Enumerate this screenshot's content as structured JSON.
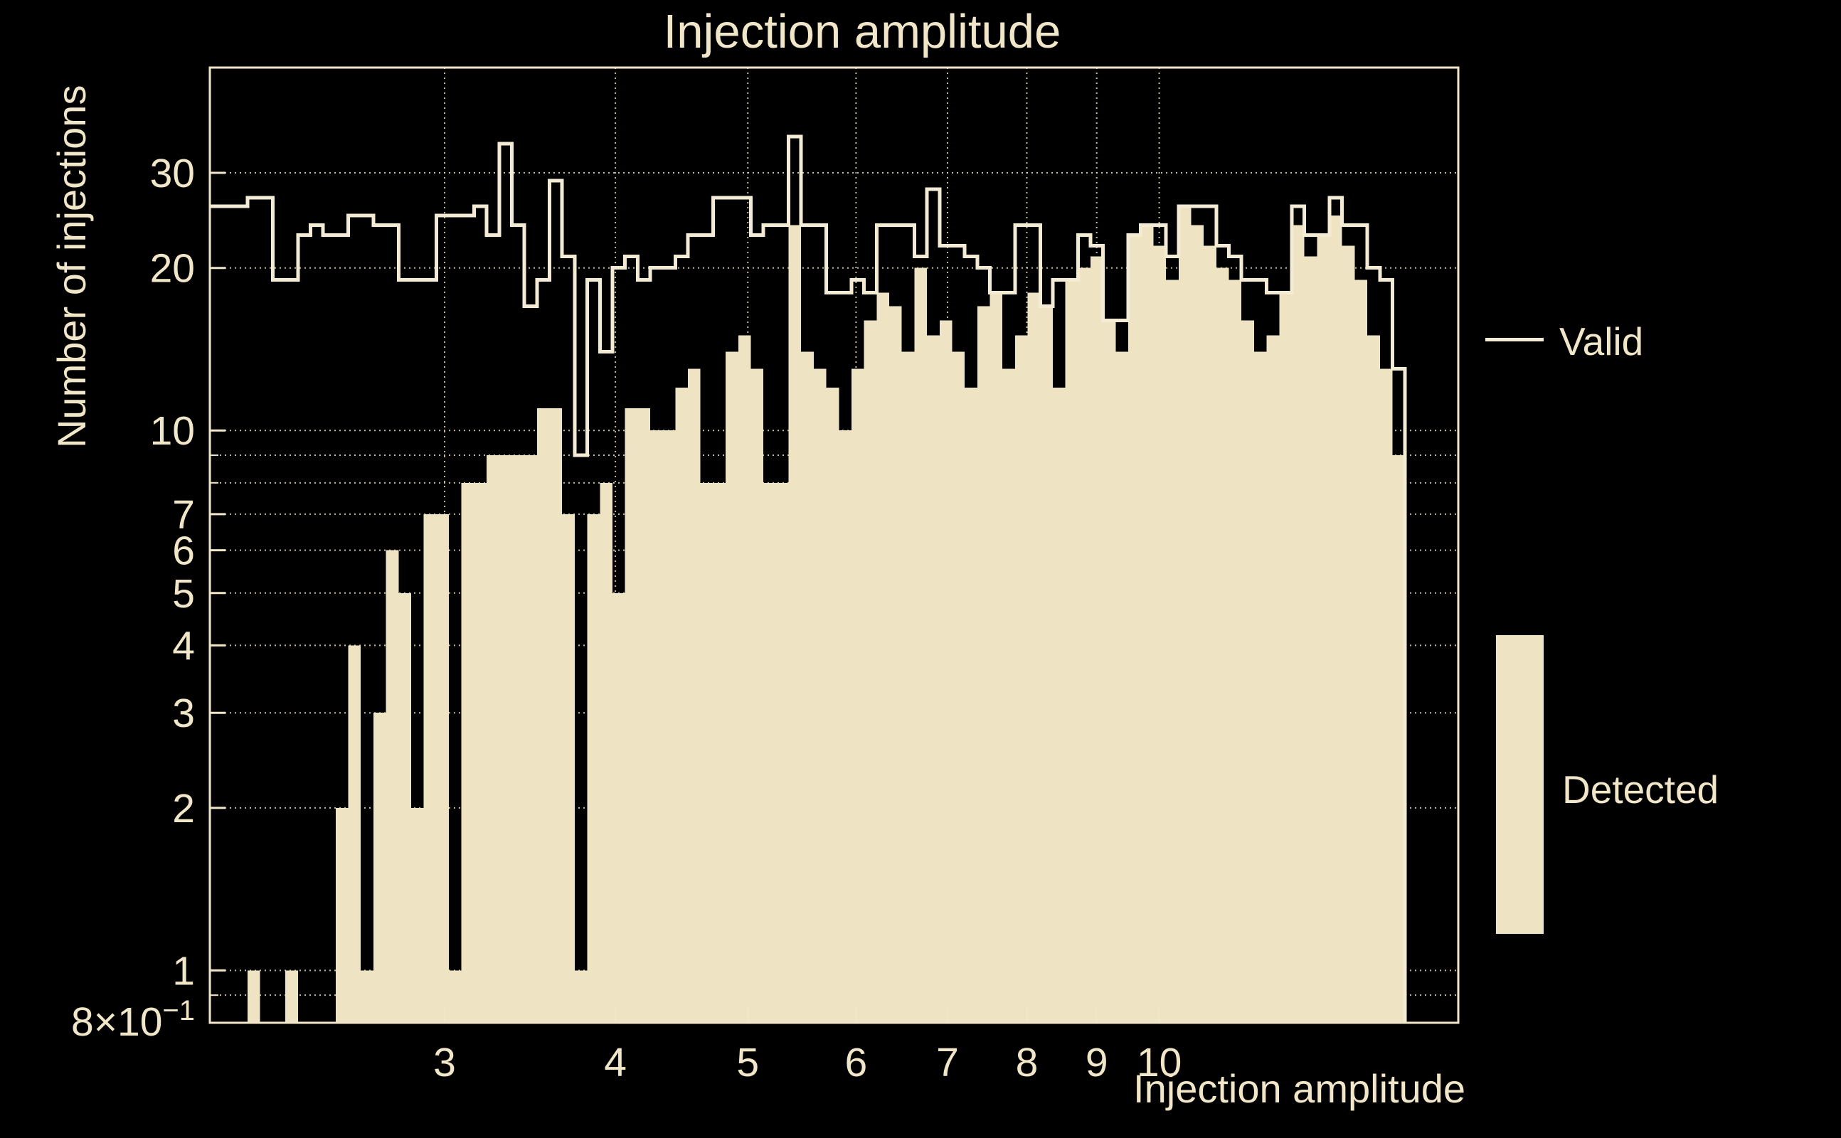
{
  "title": "Injection amplitude",
  "colors": {
    "background": "#000000",
    "text": "#f1e6c8",
    "fill": "#eee3c3",
    "line": "#f4ebd5",
    "grid": "#e8dcba",
    "frame": "#f1e6c8"
  },
  "legend": {
    "valid_label": "Valid",
    "detected_label": "Detected"
  },
  "axes": {
    "x": {
      "label": "Injection amplitude",
      "scale": "log",
      "min": 2.02,
      "max": 16.55,
      "tick_labels": [
        "3",
        "4",
        "5",
        "6",
        "7",
        "8",
        "9",
        "10"
      ],
      "tick_values": [
        3,
        4,
        5,
        6,
        7,
        8,
        9,
        10
      ],
      "grid_values": [
        3,
        4,
        5,
        6,
        7,
        8,
        9,
        10
      ]
    },
    "y": {
      "label": "Number of injections",
      "scale": "log",
      "min": 0.8,
      "max": 47,
      "tick_labels": [
        "30",
        "20",
        "10",
        "7",
        "6",
        "5",
        "4",
        "3",
        "2",
        "1"
      ],
      "tick_values": [
        30,
        20,
        10,
        7,
        6,
        5,
        4,
        3,
        2,
        1
      ],
      "bottom_tick": {
        "base": "8×10",
        "exp": "−1",
        "value": 0.8
      },
      "grid_values": [
        0.9,
        1,
        2,
        3,
        4,
        5,
        6,
        7,
        8,
        9,
        10,
        20,
        30
      ]
    }
  },
  "chart_data": {
    "type": "bar",
    "subtype": "step-histogram-log-log",
    "title": "Injection amplitude",
    "xlabel": "Injection amplitude",
    "ylabel": "Number of injections",
    "xlim": [
      2.02,
      16.55
    ],
    "ylim": [
      0.8,
      47
    ],
    "grid": true,
    "legend_position": "right",
    "bins": {
      "start": 2.02,
      "end": 15.13,
      "count": 95,
      "spacing": "log"
    },
    "series": [
      {
        "name": "Valid",
        "style": "step-line",
        "values": [
          26,
          26,
          26,
          27,
          27,
          19,
          19,
          23,
          24,
          23,
          23,
          25,
          25,
          24,
          24,
          19,
          19,
          19,
          25,
          25,
          25,
          26,
          23,
          34,
          24,
          17,
          19,
          29,
          21,
          9,
          19,
          14,
          20,
          21,
          19,
          20,
          20,
          21,
          23,
          23,
          27,
          27,
          27,
          23,
          24,
          24,
          35,
          24,
          24,
          18,
          18,
          19,
          18,
          24,
          24,
          24,
          21,
          28,
          22,
          22,
          21,
          20,
          18,
          18,
          24,
          24,
          17,
          19,
          19,
          23,
          22,
          16,
          16,
          23,
          24,
          24,
          21,
          26,
          26,
          26,
          22,
          21,
          19,
          19,
          18,
          18,
          26,
          23,
          23,
          27,
          24,
          24,
          20,
          19,
          13
        ]
      },
      {
        "name": "Detected",
        "style": "filled-step",
        "values": [
          0,
          0,
          0,
          1,
          0,
          0,
          1,
          0,
          0,
          0,
          2,
          4,
          1,
          3,
          6,
          5,
          2,
          7,
          7,
          1,
          8,
          8,
          9,
          9,
          9,
          9,
          11,
          11,
          7,
          1,
          7,
          8,
          5,
          11,
          11,
          10,
          10,
          12,
          13,
          8,
          8,
          14,
          15,
          13,
          8,
          8,
          24,
          14,
          13,
          12,
          10,
          13,
          16,
          18,
          17,
          14,
          20,
          15,
          16,
          14,
          12,
          17,
          18,
          13,
          15,
          18,
          17,
          12,
          19,
          20,
          21,
          16,
          14,
          23,
          24,
          22,
          19,
          26,
          24,
          22,
          20,
          19,
          16,
          14,
          15,
          18,
          24,
          21,
          23,
          25,
          22,
          19,
          15,
          13,
          9
        ]
      }
    ]
  }
}
